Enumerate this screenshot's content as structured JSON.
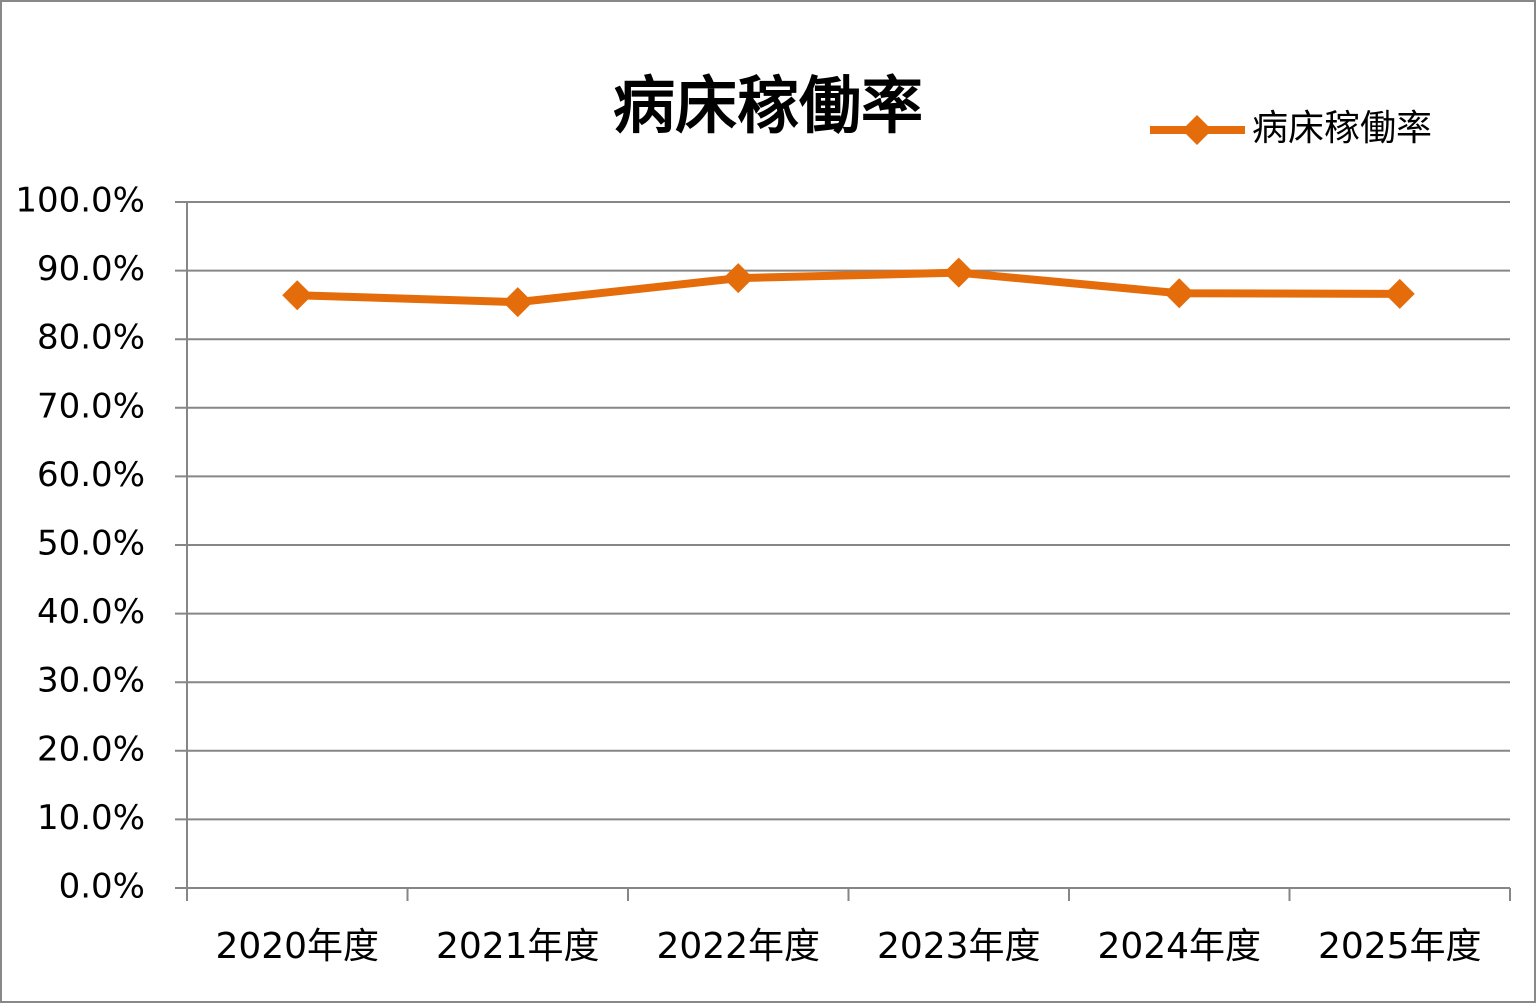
{
  "chart_data": {
    "type": "line",
    "title": "病床稼働率",
    "categories": [
      "2020年度",
      "2021年度",
      "2022年度",
      "2023年度",
      "2024年度",
      "2025年度"
    ],
    "series": [
      {
        "name": "病床稼働率",
        "color": "#e46c0a",
        "values": [
          86.4,
          85.4,
          88.9,
          89.7,
          86.7,
          86.6
        ]
      }
    ],
    "ylim": [
      0,
      100
    ],
    "yticks": [
      {
        "value": 0,
        "label": "0.0%"
      },
      {
        "value": 10,
        "label": "10.0%"
      },
      {
        "value": 20,
        "label": "20.0%"
      },
      {
        "value": 30,
        "label": "30.0%"
      },
      {
        "value": 40,
        "label": "40.0%"
      },
      {
        "value": 50,
        "label": "50.0%"
      },
      {
        "value": 60,
        "label": "60.0%"
      },
      {
        "value": 70,
        "label": "70.0%"
      },
      {
        "value": 80,
        "label": "80.0%"
      },
      {
        "value": 90,
        "label": "90.0%"
      },
      {
        "value": 100,
        "label": "100.0%"
      }
    ],
    "grid": true,
    "legend": "top-right"
  }
}
